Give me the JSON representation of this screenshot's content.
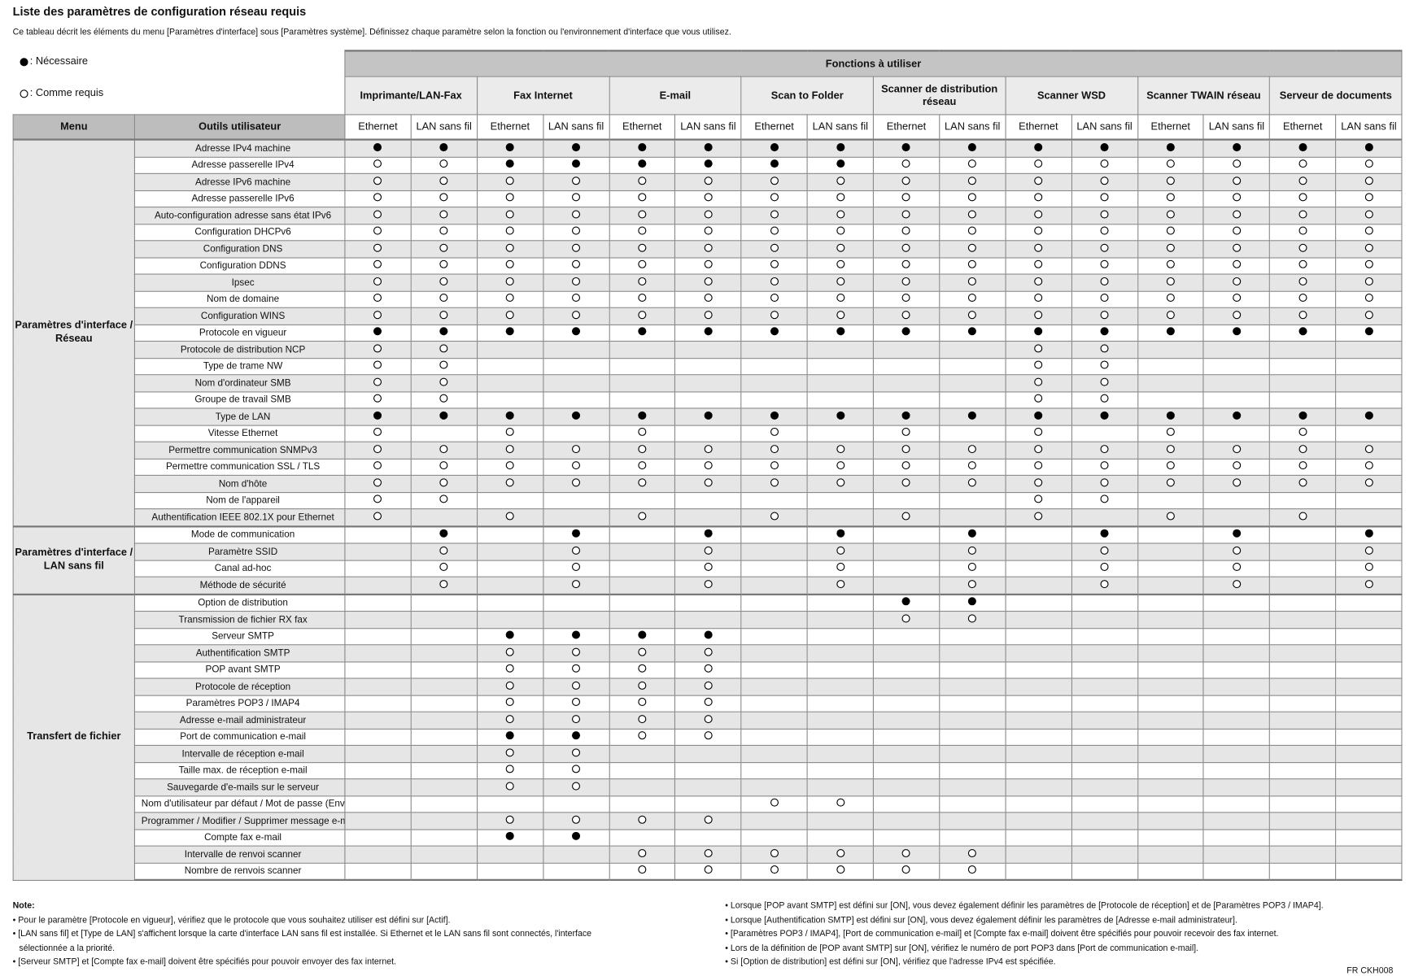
{
  "title": "Liste des paramètres de configuration réseau requis",
  "description": "Ce tableau décrit les éléments du menu [Paramètres d'interface] sous [Paramètres système].  Définissez chaque paramètre selon la fonction ou l'environnement d'interface que vous utilisez.",
  "legend": {
    "required": ": Nécessaire",
    "as_needed": ": Comme requis"
  },
  "header": {
    "functions": "Fonctions à utiliser",
    "menu": "Menu",
    "tools": "Outils utilisateur",
    "groups": [
      "Imprimante/LAN-Fax",
      "Fax Internet",
      "E-mail",
      "Scan to Folder",
      "Scanner de distribution réseau",
      "Scanner WSD",
      "Scanner TWAIN réseau",
      "Serveur de documents"
    ],
    "ethernet": "Ethernet",
    "wireless": "LAN sans fil"
  },
  "symbols": {
    "F": "filled-circle (Nécessaire)",
    "O": "open-circle (Comme requis)",
    "-": "empty"
  },
  "sections": [
    {
      "name": "Paramètres d'interface / Réseau",
      "rows": [
        {
          "label": "Adresse IPv4 machine",
          "v": "FFFFFFFFFFFFFFFF"
        },
        {
          "label": "Adresse passerelle IPv4",
          "v": "OOFFFFFFOOOOOOOO"
        },
        {
          "label": "Adresse IPv6 machine",
          "v": "OOOOOOOOOOOOOOOO"
        },
        {
          "label": "Adresse passerelle IPv6",
          "v": "OOOOOOOOOOOOOOOO"
        },
        {
          "label": "Auto-configuration adresse sans état IPv6",
          "v": "OOOOOOOOOOOOOOOO"
        },
        {
          "label": "Configuration DHCPv6",
          "v": "OOOOOOOOOOOOOOOO"
        },
        {
          "label": "Configuration DNS",
          "v": "OOOOOOOOOOOOOOOO"
        },
        {
          "label": "Configuration DDNS",
          "v": "OOOOOOOOOOOOOOOO"
        },
        {
          "label": "Ipsec",
          "v": "OOOOOOOOOOOOOOOO"
        },
        {
          "label": "Nom de domaine",
          "v": "OOOOOOOOOOOOOOOO"
        },
        {
          "label": "Configuration WINS",
          "v": "OOOOOOOOOOOOOOOO"
        },
        {
          "label": "Protocole en vigueur",
          "v": "FFFFFFFFFFFFFFFF"
        },
        {
          "label": "Protocole de distribution NCP",
          "v": "OO--------OO----"
        },
        {
          "label": "Type de trame NW",
          "v": "OO--------OO----"
        },
        {
          "label": "Nom d'ordinateur SMB",
          "v": "OO--------OO----"
        },
        {
          "label": "Groupe de travail SMB",
          "v": "OO--------OO----"
        },
        {
          "label": "Type de LAN",
          "v": "FFFFFFFFFFFFFFFF"
        },
        {
          "label": "Vitesse Ethernet",
          "v": "O-O-O-O-O-O-O-O-"
        },
        {
          "label": "Permettre communication SNMPv3",
          "v": "OOOOOOOOOOOOOOOO"
        },
        {
          "label": "Permettre communication SSL / TLS",
          "v": "OOOOOOOOOOOOOOOO"
        },
        {
          "label": "Nom d'hôte",
          "v": "OOOOOOOOOOOOOOOO"
        },
        {
          "label": "Nom de l'appareil",
          "v": "OO--------OO----"
        },
        {
          "label": "Authentification IEEE 802.1X pour Ethernet",
          "v": "O-O-O-O-O-O-O-O-"
        }
      ]
    },
    {
      "name": "Paramètres d'interface / LAN sans fil",
      "rows": [
        {
          "label": "Mode de communication",
          "v": "-F-F-F-F-F-F-F-F"
        },
        {
          "label": "Paramètre SSID",
          "v": "-O-O-O-O-O-O-O-O"
        },
        {
          "label": "Canal ad-hoc",
          "v": "-O-O-O-O-O-O-O-O"
        },
        {
          "label": "Méthode de sécurité",
          "v": "-O-O-O-O-O-O-O-O"
        }
      ]
    },
    {
      "name": "Transfert de fichier",
      "rows": [
        {
          "label": "Option de distribution",
          "v": "--------FF------"
        },
        {
          "label": "Transmission de fichier RX fax",
          "v": "--------OO------"
        },
        {
          "label": "Serveur SMTP",
          "v": "--FFFF----------"
        },
        {
          "label": "Authentification SMTP",
          "v": "--OOOO----------"
        },
        {
          "label": "POP avant SMTP",
          "v": "--OOOO----------"
        },
        {
          "label": "Protocole de réception",
          "v": "--OOOO----------"
        },
        {
          "label": "Paramètres POP3 / IMAP4",
          "v": "--OOOO----------"
        },
        {
          "label": "Adresse e-mail administrateur",
          "v": "--OOOO----------"
        },
        {
          "label": "Port de communication e-mail",
          "v": "--FFOO----------"
        },
        {
          "label": "Intervalle de réception e-mail",
          "v": "--OO------------"
        },
        {
          "label": "Taille max. de réception e-mail",
          "v": "--OO------------"
        },
        {
          "label": "Sauvegarde d'e-mails sur le serveur",
          "v": "--OO------------"
        },
        {
          "label": "Nom d'utilisateur par défaut / Mot de passe (Envoi)",
          "v": "------OO--------"
        },
        {
          "label": "Programmer / Modifier / Supprimer message e-mail",
          "v": "--OOOO----------"
        },
        {
          "label": "Compte fax e-mail",
          "v": "--FF------------"
        },
        {
          "label": "Intervalle de renvoi scanner",
          "v": "----OOOOOO------"
        },
        {
          "label": "Nombre de renvois scanner",
          "v": "----OOOOOO------"
        }
      ]
    }
  ],
  "notes": {
    "heading": "Note:",
    "left": [
      "• Pour le paramètre [Protocole en vigueur], vérifiez que le protocole que vous souhaitez utiliser est défini sur [Actif].",
      "• [LAN sans fil] et [Type de LAN] s'affichent lorsque la carte d'interface LAN sans fil est installée. Si Ethernet et le LAN sans fil sont connectés, l'interface",
      "   sélectionnée a la priorité.",
      "• [Serveur SMTP] et [Compte fax e-mail] doivent être spécifiés pour pouvoir envoyer des fax internet."
    ],
    "right": [
      "• Lorsque [POP avant SMTP] est défini sur [ON], vous devez également définir les paramètres de [Protocole de réception] et de [Paramètres POP3 / IMAP4].",
      "• Lorsque [Authentification SMTP] est défini sur [ON], vous devez également définir les paramètres de [Adresse e-mail administrateur].",
      "• [Paramètres POP3 / IMAP4], [Port de communication e-mail] et [Compte fax e-mail] doivent être spécifiés pour pouvoir recevoir des fax internet.",
      "• Lors de la définition de [POP avant SMTP] sur [ON], vérifiez le numéro de port POP3 dans [Port de communication e-mail].",
      "• Si [Option de distribution] est défini sur [ON], vérifiez que l'adresse IPv4 est spécifiée."
    ]
  },
  "reference": "FR CKH008"
}
